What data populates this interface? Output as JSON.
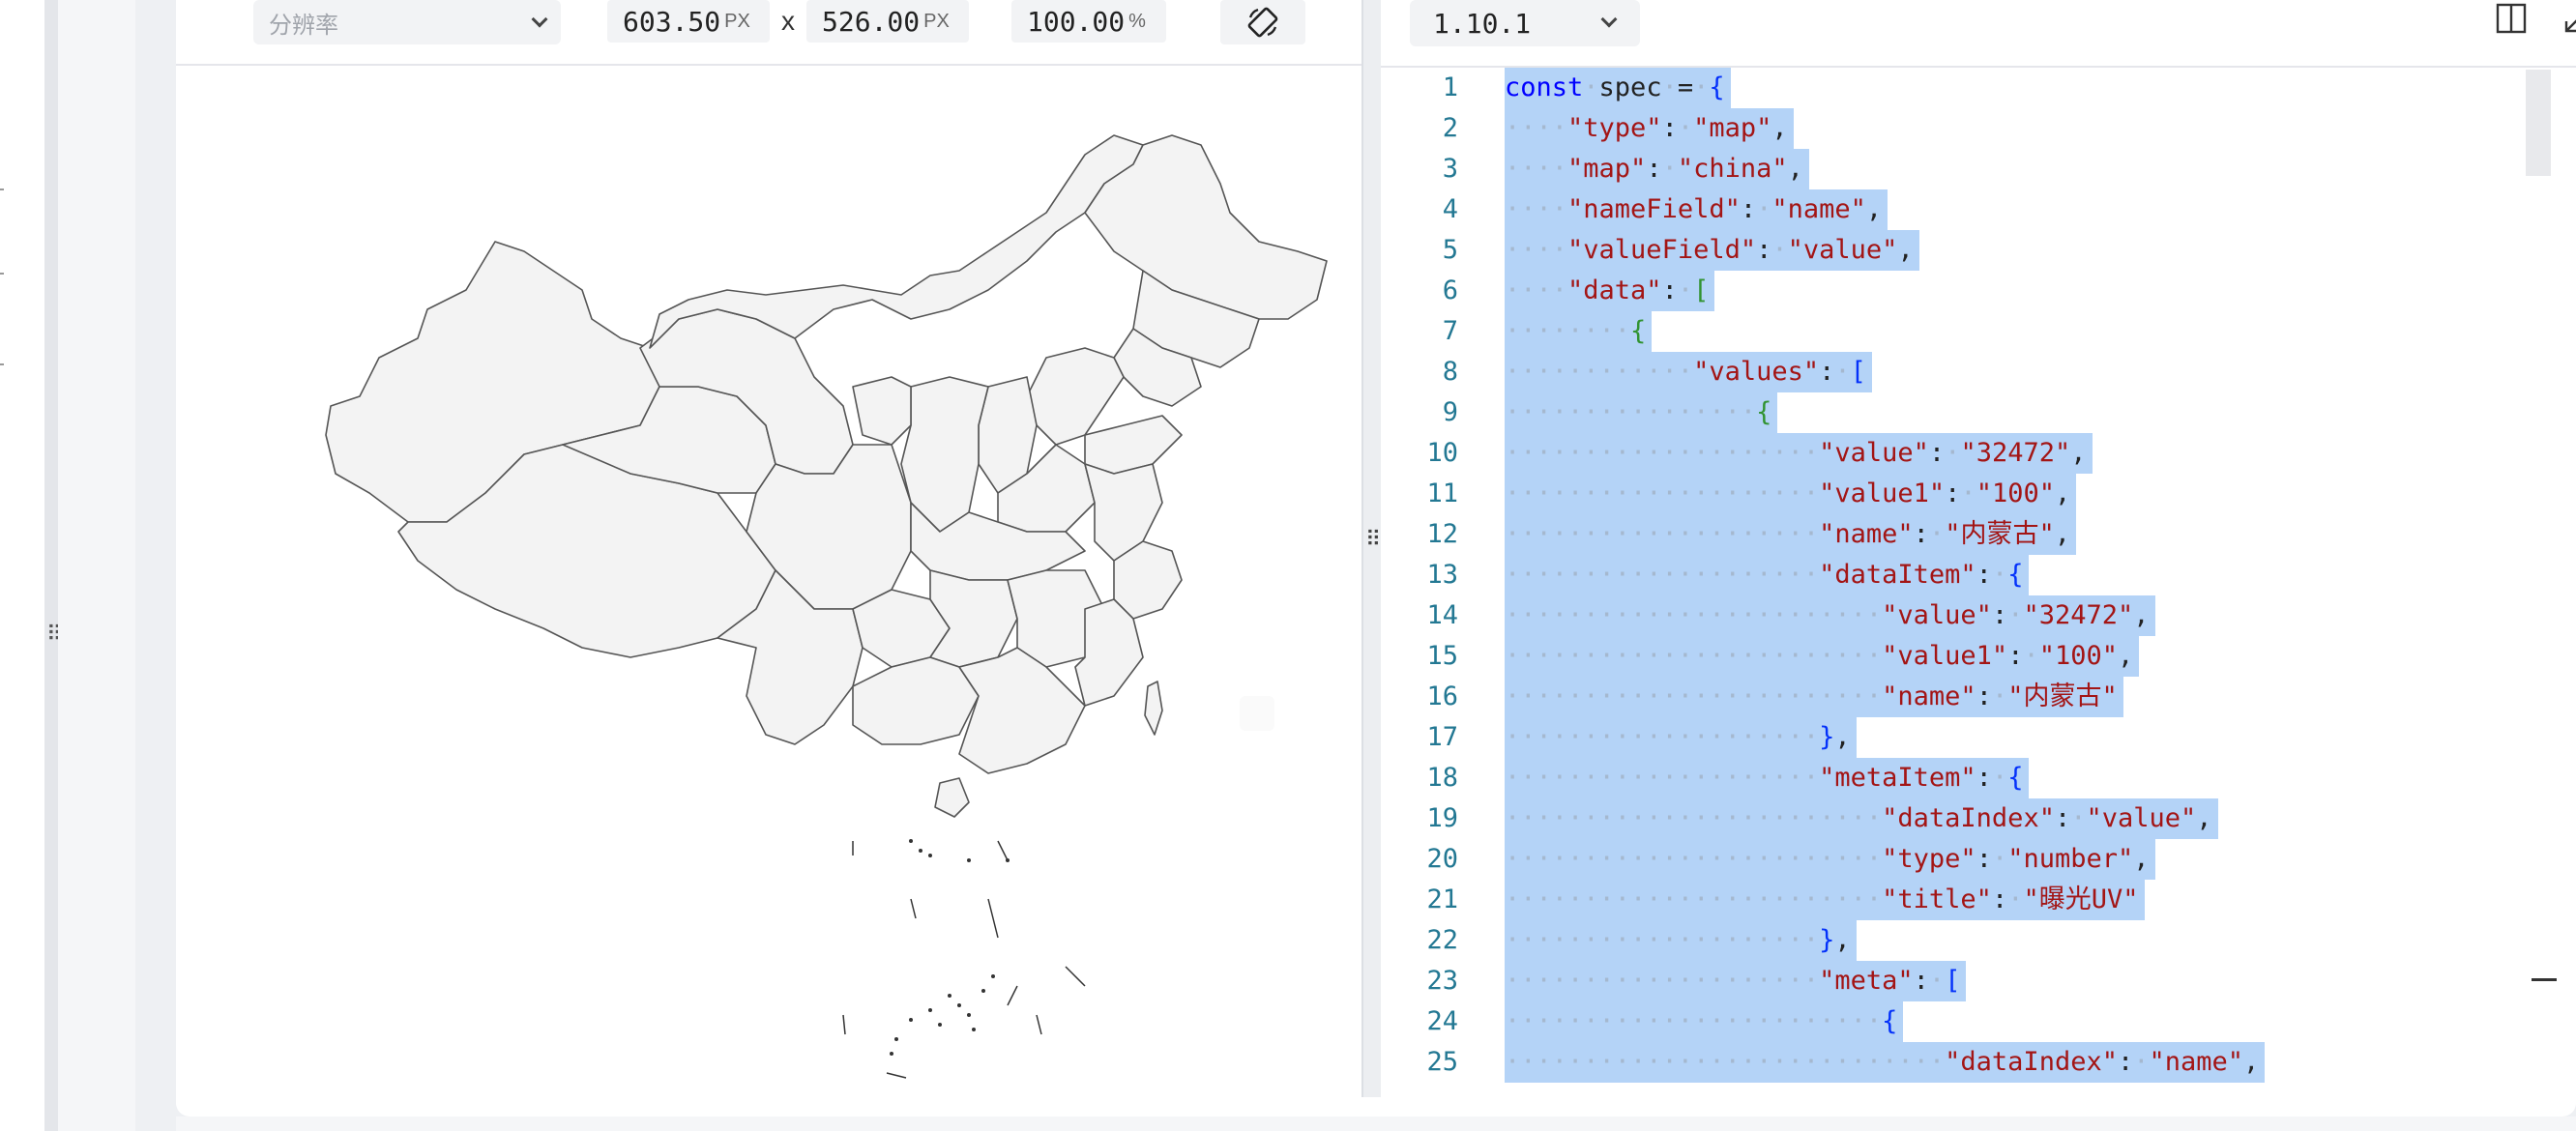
{
  "preview_toolbar": {
    "resolution_placeholder": "分辨率",
    "width_value": "603.50",
    "width_unit": "PX",
    "separator": "x",
    "height_value": "526.00",
    "height_unit": "PX",
    "zoom_value": "100.00",
    "zoom_unit": "%"
  },
  "editor": {
    "version": "1.10.1",
    "lines": [
      {
        "n": "1",
        "segs": [
          [
            "k",
            "const"
          ],
          [
            "d",
            "·"
          ],
          [
            "p",
            "spec"
          ],
          [
            "d",
            "·"
          ],
          [
            "p",
            "="
          ],
          [
            "d",
            "·"
          ],
          [
            "b1",
            "{"
          ]
        ]
      },
      {
        "n": "2",
        "segs": [
          [
            "d",
            "····"
          ],
          [
            "s",
            "\"type\""
          ],
          [
            "p",
            ":"
          ],
          [
            "d",
            "·"
          ],
          [
            "s",
            "\"map\""
          ],
          [
            "p",
            ","
          ]
        ]
      },
      {
        "n": "3",
        "segs": [
          [
            "d",
            "····"
          ],
          [
            "s",
            "\"map\""
          ],
          [
            "p",
            ":"
          ],
          [
            "d",
            "·"
          ],
          [
            "s",
            "\"china\""
          ],
          [
            "p",
            ","
          ]
        ]
      },
      {
        "n": "4",
        "segs": [
          [
            "d",
            "····"
          ],
          [
            "s",
            "\"nameField\""
          ],
          [
            "p",
            ":"
          ],
          [
            "d",
            "·"
          ],
          [
            "s",
            "\"name\""
          ],
          [
            "p",
            ","
          ]
        ]
      },
      {
        "n": "5",
        "segs": [
          [
            "d",
            "····"
          ],
          [
            "s",
            "\"valueField\""
          ],
          [
            "p",
            ":"
          ],
          [
            "d",
            "·"
          ],
          [
            "s",
            "\"value\""
          ],
          [
            "p",
            ","
          ]
        ]
      },
      {
        "n": "6",
        "segs": [
          [
            "d",
            "····"
          ],
          [
            "s",
            "\"data\""
          ],
          [
            "p",
            ":"
          ],
          [
            "d",
            "·"
          ],
          [
            "b2",
            "["
          ]
        ]
      },
      {
        "n": "7",
        "segs": [
          [
            "d",
            "········"
          ],
          [
            "b2",
            "{"
          ]
        ]
      },
      {
        "n": "8",
        "segs": [
          [
            "d",
            "············"
          ],
          [
            "s",
            "\"values\""
          ],
          [
            "p",
            ":"
          ],
          [
            "d",
            "·"
          ],
          [
            "b1",
            "["
          ]
        ]
      },
      {
        "n": "9",
        "segs": [
          [
            "d",
            "················"
          ],
          [
            "b2",
            "{"
          ]
        ]
      },
      {
        "n": "10",
        "segs": [
          [
            "d",
            "····················"
          ],
          [
            "s",
            "\"value\""
          ],
          [
            "p",
            ":"
          ],
          [
            "d",
            "·"
          ],
          [
            "s",
            "\"32472\""
          ],
          [
            "p",
            ","
          ]
        ]
      },
      {
        "n": "11",
        "segs": [
          [
            "d",
            "····················"
          ],
          [
            "s",
            "\"value1\""
          ],
          [
            "p",
            ":"
          ],
          [
            "d",
            "·"
          ],
          [
            "s",
            "\"100\""
          ],
          [
            "p",
            ","
          ]
        ]
      },
      {
        "n": "12",
        "segs": [
          [
            "d",
            "····················"
          ],
          [
            "s",
            "\"name\""
          ],
          [
            "p",
            ":"
          ],
          [
            "d",
            "·"
          ],
          [
            "s",
            "\"内蒙古\""
          ],
          [
            "p",
            ","
          ]
        ]
      },
      {
        "n": "13",
        "segs": [
          [
            "d",
            "····················"
          ],
          [
            "s",
            "\"dataItem\""
          ],
          [
            "p",
            ":"
          ],
          [
            "d",
            "·"
          ],
          [
            "b1",
            "{"
          ]
        ]
      },
      {
        "n": "14",
        "segs": [
          [
            "d",
            "························"
          ],
          [
            "s",
            "\"value\""
          ],
          [
            "p",
            ":"
          ],
          [
            "d",
            "·"
          ],
          [
            "s",
            "\"32472\""
          ],
          [
            "p",
            ","
          ]
        ]
      },
      {
        "n": "15",
        "segs": [
          [
            "d",
            "························"
          ],
          [
            "s",
            "\"value1\""
          ],
          [
            "p",
            ":"
          ],
          [
            "d",
            "·"
          ],
          [
            "s",
            "\"100\""
          ],
          [
            "p",
            ","
          ]
        ]
      },
      {
        "n": "16",
        "segs": [
          [
            "d",
            "························"
          ],
          [
            "s",
            "\"name\""
          ],
          [
            "p",
            ":"
          ],
          [
            "d",
            "·"
          ],
          [
            "s",
            "\"内蒙古\""
          ]
        ]
      },
      {
        "n": "17",
        "segs": [
          [
            "d",
            "····················"
          ],
          [
            "b1",
            "}"
          ],
          [
            "p",
            ","
          ]
        ]
      },
      {
        "n": "18",
        "segs": [
          [
            "d",
            "····················"
          ],
          [
            "s",
            "\"metaItem\""
          ],
          [
            "p",
            ":"
          ],
          [
            "d",
            "·"
          ],
          [
            "b1",
            "{"
          ]
        ]
      },
      {
        "n": "19",
        "segs": [
          [
            "d",
            "························"
          ],
          [
            "s",
            "\"dataIndex\""
          ],
          [
            "p",
            ":"
          ],
          [
            "d",
            "·"
          ],
          [
            "s",
            "\"value\""
          ],
          [
            "p",
            ","
          ]
        ]
      },
      {
        "n": "20",
        "segs": [
          [
            "d",
            "························"
          ],
          [
            "s",
            "\"type\""
          ],
          [
            "p",
            ":"
          ],
          [
            "d",
            "·"
          ],
          [
            "s",
            "\"number\""
          ],
          [
            "p",
            ","
          ]
        ]
      },
      {
        "n": "21",
        "segs": [
          [
            "d",
            "························"
          ],
          [
            "s",
            "\"title\""
          ],
          [
            "p",
            ":"
          ],
          [
            "d",
            "·"
          ],
          [
            "s",
            "\"曝光UV\""
          ]
        ]
      },
      {
        "n": "22",
        "segs": [
          [
            "d",
            "····················"
          ],
          [
            "b1",
            "}"
          ],
          [
            "p",
            ","
          ]
        ]
      },
      {
        "n": "23",
        "segs": [
          [
            "d",
            "····················"
          ],
          [
            "s",
            "\"meta\""
          ],
          [
            "p",
            ":"
          ],
          [
            "d",
            "·"
          ],
          [
            "b1",
            "["
          ]
        ]
      },
      {
        "n": "24",
        "segs": [
          [
            "d",
            "························"
          ],
          [
            "b1",
            "{"
          ]
        ]
      },
      {
        "n": "25",
        "segs": [
          [
            "d",
            "····························"
          ],
          [
            "s",
            "\"dataIndex\""
          ],
          [
            "p",
            ":"
          ],
          [
            "d",
            "·"
          ],
          [
            "s",
            "\"name\""
          ],
          [
            "p",
            ","
          ]
        ]
      }
    ]
  },
  "colors": {
    "selection": "#b4d3f7",
    "line_number": "#237893",
    "string": "#a31515",
    "keyword": "#0000ff"
  }
}
